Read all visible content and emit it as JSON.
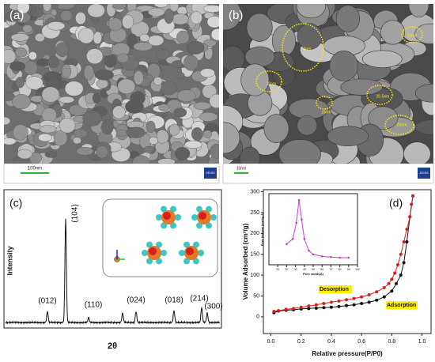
{
  "panels": {
    "a": {
      "label": "(a)",
      "scale_bar": "100nm",
      "logo": "ZEISS"
    },
    "b": {
      "label": "(b)",
      "scale_bar": "10nm",
      "logo": "ZEISS",
      "annotations": [
        "50nm",
        "20nm",
        "20nm",
        "10nm",
        "20.5nm",
        "20nm"
      ]
    },
    "c": {
      "label": "(c)",
      "y_label": "Intensity",
      "x_label": "2θ",
      "peaks": [
        "(012)",
        "(104)",
        "(110)",
        "(024)",
        "(018)",
        "(214)",
        "(300)"
      ]
    },
    "d": {
      "label": "(d)"
    }
  },
  "chart_data": [
    {
      "type": "line",
      "x_label": "Relative pressure(P/P0)",
      "y_label": "Volume Adsorbed (cm³/g)",
      "xlim": [
        -0.05,
        1.06
      ],
      "ylim": [
        -40,
        305
      ],
      "xticks": [
        {
          "value": 0,
          "label": "0.0"
        },
        {
          "value": 0.2,
          "label": "0.2"
        },
        {
          "value": 0.4,
          "label": "0.4"
        },
        {
          "value": 0.6,
          "label": "0.6"
        },
        {
          "value": 0.8,
          "label": "0.8"
        },
        {
          "value": 1,
          "label": "1.0"
        }
      ],
      "yticks": [
        0,
        50,
        100,
        150,
        200,
        250,
        300
      ],
      "series": [
        {
          "name": "Adsorption",
          "color": "#111111",
          "x": [
            0.02,
            0.05,
            0.1,
            0.15,
            0.2,
            0.25,
            0.3,
            0.35,
            0.4,
            0.45,
            0.5,
            0.55,
            0.6,
            0.65,
            0.7,
            0.75,
            0.8,
            0.83,
            0.86,
            0.88,
            0.9,
            0.92,
            0.94
          ],
          "values": [
            10,
            14,
            16,
            17,
            19,
            20,
            21,
            22,
            23,
            25,
            27,
            29,
            32,
            35,
            40,
            48,
            62,
            80,
            100,
            130,
            180,
            240,
            290
          ]
        },
        {
          "name": "Desorption",
          "color": "#d42020",
          "x": [
            0.94,
            0.93,
            0.92,
            0.9,
            0.88,
            0.86,
            0.84,
            0.82,
            0.8,
            0.78,
            0.75,
            0.7,
            0.65,
            0.6,
            0.55,
            0.5,
            0.45,
            0.4,
            0.35,
            0.3,
            0.25,
            0.2,
            0.15,
            0.1,
            0.05,
            0.02
          ],
          "values": [
            290,
            270,
            240,
            210,
            180,
            150,
            125,
            105,
            90,
            80,
            70,
            60,
            53,
            48,
            44,
            41,
            38,
            35,
            32,
            29,
            26,
            23,
            20,
            18,
            15,
            13
          ]
        }
      ]
    },
    {
      "type": "line",
      "x_label": "Pore width(Å)",
      "y_label": "Pore Volume (cm³/g.Å)",
      "xlim": [
        0,
        100
      ],
      "ylim": [
        0,
        11
      ],
      "xticks": [
        10,
        20,
        30,
        40,
        50,
        60,
        70,
        80,
        90,
        100
      ],
      "series": [
        {
          "name": "Pore Volume",
          "color": "#c040c8",
          "x": [
            20,
            27,
            31,
            34,
            37,
            40,
            45,
            50,
            60,
            70,
            80,
            90
          ],
          "values": [
            3.2,
            4.0,
            6.5,
            10.0,
            7.0,
            4.0,
            2.2,
            1.6,
            1.3,
            1.2,
            1.1,
            1.1
          ]
        }
      ]
    }
  ]
}
